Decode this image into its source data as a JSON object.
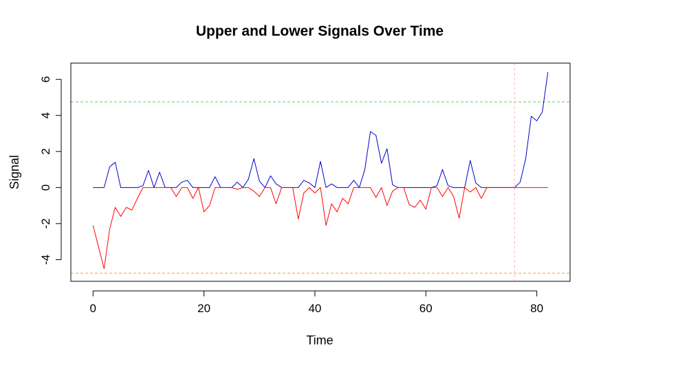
{
  "chart_data": {
    "type": "line",
    "title": "Upper and Lower Signals Over Time",
    "xlabel": "Time",
    "ylabel": "Signal",
    "xlim": [
      -4,
      86
    ],
    "ylim": [
      -5.2,
      6.9
    ],
    "xticks": [
      0,
      20,
      40,
      60,
      80
    ],
    "yticks": [
      -4,
      -2,
      0,
      2,
      4,
      6
    ],
    "grid": false,
    "legend": "none",
    "hlines": [
      {
        "y": 4.75,
        "color": "#55dd55",
        "style": "dashed"
      },
      {
        "y": -4.75,
        "color": "#f0a030",
        "style": "dashed"
      }
    ],
    "vlines": [
      {
        "x": 76,
        "color": "#ffb6c1",
        "style": "dashed"
      }
    ],
    "x": [
      0,
      1,
      2,
      3,
      4,
      5,
      6,
      7,
      8,
      9,
      10,
      11,
      12,
      13,
      14,
      15,
      16,
      17,
      18,
      19,
      20,
      21,
      22,
      23,
      24,
      25,
      26,
      27,
      28,
      29,
      30,
      31,
      32,
      33,
      34,
      35,
      36,
      37,
      38,
      39,
      40,
      41,
      42,
      43,
      44,
      45,
      46,
      47,
      48,
      49,
      50,
      51,
      52,
      53,
      54,
      55,
      56,
      57,
      58,
      59,
      60,
      61,
      62,
      63,
      64,
      65,
      66,
      67,
      68,
      69,
      70,
      71,
      72,
      73,
      74,
      75,
      76,
      77,
      78,
      79,
      80,
      81,
      82
    ],
    "series": [
      {
        "color": "#0000cc",
        "values": [
          0,
          0,
          0,
          1.15,
          1.4,
          0,
          0,
          0,
          0,
          0.1,
          0.95,
          0,
          0.85,
          0,
          0,
          0,
          0.3,
          0.4,
          0,
          0,
          0,
          0,
          0.6,
          0,
          0,
          0,
          0.3,
          0,
          0.45,
          1.6,
          0.35,
          0,
          0.65,
          0.2,
          0,
          0,
          0,
          0,
          0.4,
          0.25,
          0,
          1.45,
          0,
          0.2,
          0,
          0,
          0,
          0.4,
          0,
          1.0,
          3.1,
          2.9,
          1.35,
          2.15,
          0.15,
          0,
          0,
          0,
          0,
          0,
          0,
          0,
          0.1,
          1.0,
          0.1,
          0,
          0,
          0,
          1.5,
          0.25,
          0,
          0,
          0,
          0,
          0,
          0,
          0,
          0.3,
          1.6,
          3.95,
          3.7,
          4.2,
          6.4
        ]
      },
      {
        "color": "#ff0000",
        "values": [
          -2.1,
          -3.3,
          -4.5,
          -2.3,
          -1.1,
          -1.6,
          -1.1,
          -1.25,
          -0.6,
          0,
          0,
          0,
          0,
          0,
          0,
          -0.5,
          0,
          0,
          -0.6,
          0,
          -1.35,
          -1.0,
          0,
          0,
          0,
          0,
          -0.1,
          0,
          0,
          -0.2,
          -0.5,
          0,
          0,
          -0.9,
          0,
          0,
          0,
          -1.75,
          -0.3,
          0,
          -0.3,
          0,
          -2.1,
          -0.9,
          -1.35,
          -0.6,
          -0.9,
          0,
          0,
          0,
          0,
          -0.55,
          0,
          -1.0,
          -0.2,
          0,
          0,
          -0.95,
          -1.1,
          -0.7,
          -1.2,
          0,
          0,
          -0.5,
          0,
          -0.5,
          -1.7,
          0,
          -0.25,
          0,
          -0.6,
          0,
          0,
          0,
          0,
          0,
          0,
          0,
          0,
          0,
          0,
          0,
          0
        ]
      }
    ]
  }
}
